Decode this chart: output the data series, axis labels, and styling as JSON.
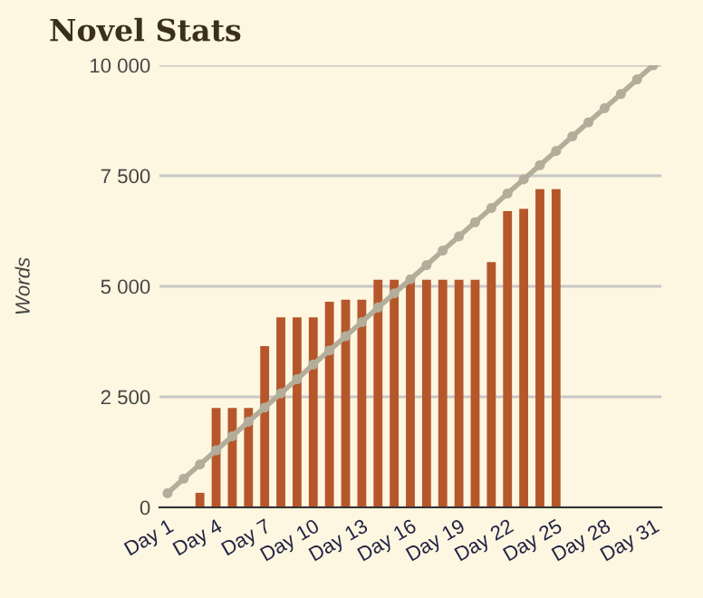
{
  "chart_data": {
    "type": "bar",
    "title": "Novel Stats",
    "ylabel": "Words",
    "categories": [
      "Day 1",
      null,
      null,
      "Day 4",
      null,
      null,
      "Day 7",
      null,
      null,
      "Day 10",
      null,
      null,
      "Day 13",
      null,
      null,
      "Day 16",
      null,
      null,
      "Day 19",
      null,
      null,
      "Day 22",
      null,
      null,
      "Day 25",
      null,
      null,
      "Day 28",
      null,
      null,
      "Day 31"
    ],
    "series": [
      {
        "color": "#b5572a",
        "values": [
          null,
          null,
          330,
          2250,
          2250,
          2250,
          3650,
          4300,
          4300,
          4300,
          4650,
          4700,
          4700,
          5150,
          5150,
          5150,
          5150,
          5150,
          5150,
          5150,
          5550,
          6700,
          6750,
          7200,
          7200,
          null,
          null,
          null,
          null,
          null,
          null
        ]
      },
      {
        "type": "line",
        "color": "#b3ad9a",
        "marker": "circle",
        "values": [
          320,
          650,
          970,
          1290,
          1610,
          1940,
          2260,
          2580,
          2900,
          3230,
          3550,
          3870,
          4190,
          4520,
          4840,
          5160,
          5480,
          5810,
          6130,
          6450,
          6770,
          7100,
          7420,
          7740,
          8060,
          8390,
          8710,
          9030,
          9350,
          9680,
          10000
        ]
      }
    ],
    "ylim": [
      0,
      10000
    ],
    "yticks": [
      {
        "value": 0,
        "label": "0"
      },
      {
        "value": 2500,
        "label": "2 500"
      },
      {
        "value": 5000,
        "label": "5 000"
      },
      {
        "value": 7500,
        "label": "7 500"
      },
      {
        "value": 10000,
        "label": "10 000"
      }
    ],
    "grid": "y",
    "legend": false
  }
}
